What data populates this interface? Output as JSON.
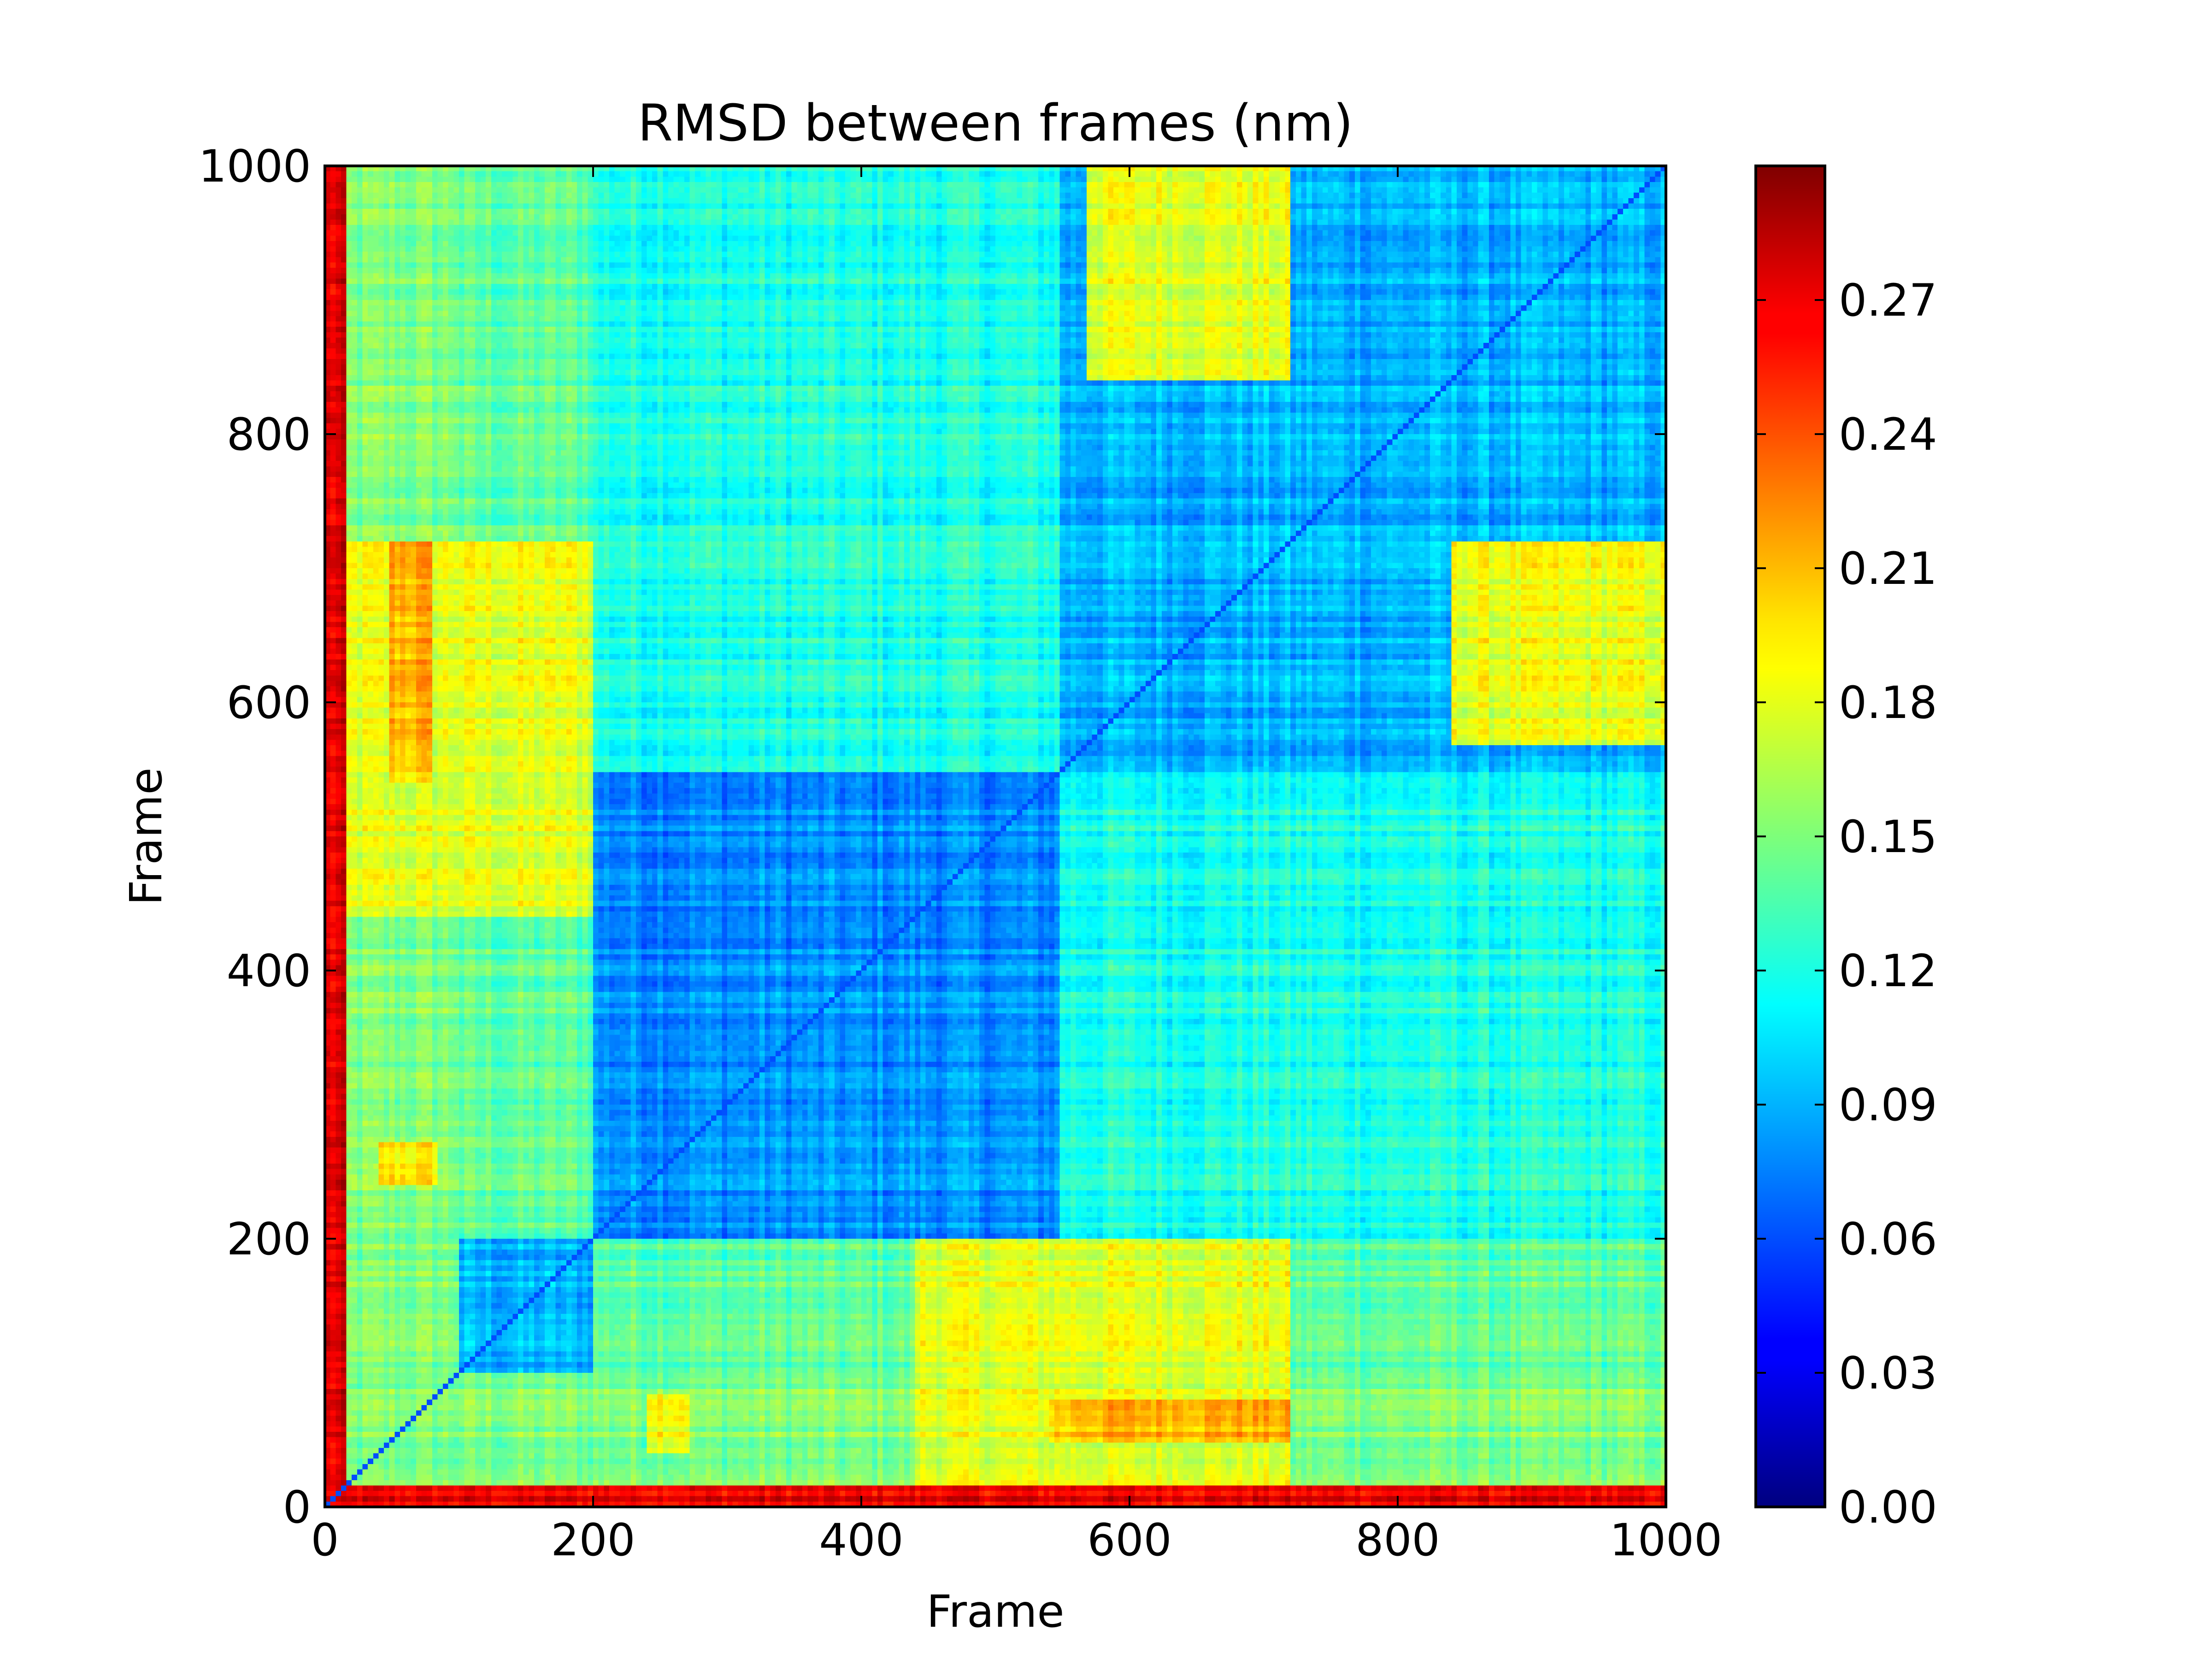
{
  "chart_data": {
    "type": "heatmap",
    "title": "RMSD between frames (nm)",
    "xlabel": "Frame",
    "ylabel": "Frame",
    "xlim": [
      0,
      1000
    ],
    "ylim": [
      0,
      1000
    ],
    "x_ticks": [
      "0",
      "200",
      "400",
      "600",
      "800",
      "1000"
    ],
    "y_ticks": [
      "0",
      "200",
      "400",
      "600",
      "800",
      "1000"
    ],
    "colormap": "jet",
    "colorbar": {
      "min": 0.0,
      "max": 0.3,
      "ticks": [
        "0.00",
        "0.03",
        "0.06",
        "0.09",
        "0.12",
        "0.15",
        "0.18",
        "0.21",
        "0.24",
        "0.27"
      ]
    },
    "grid": false,
    "diagonal_value": 0.0,
    "regions": [
      {
        "frames": [
          0,
          15
        ],
        "rmsd_to_others": 0.27,
        "note": "initial frames, high RMSD to all others"
      },
      {
        "frames": [
          15,
          100
        ],
        "rmsd_to_others": 0.15
      },
      {
        "frames": [
          100,
          200
        ],
        "rmsd_within": 0.09,
        "rmsd_to_others": 0.14
      },
      {
        "frames": [
          200,
          550
        ],
        "rmsd_within": 0.08,
        "rmsd_to_others": 0.12
      },
      {
        "frames": [
          550,
          1000
        ],
        "rmsd_within": 0.09,
        "rmsd_to_others": 0.12
      }
    ],
    "hotspots": [
      {
        "x": [
          50,
          80
        ],
        "y": [
          540,
          720
        ],
        "value": 0.2
      },
      {
        "x": [
          240,
          270
        ],
        "y": [
          40,
          85
        ],
        "value": 0.19
      },
      {
        "x": [
          560,
          720
        ],
        "y": [
          50,
          80
        ],
        "value": 0.21
      },
      {
        "x": [
          570,
          720
        ],
        "y": [
          840,
          1000
        ],
        "value": 0.18
      },
      {
        "x": [
          0,
          200
        ],
        "y": [
          440,
          720
        ],
        "value": 0.18
      }
    ]
  }
}
